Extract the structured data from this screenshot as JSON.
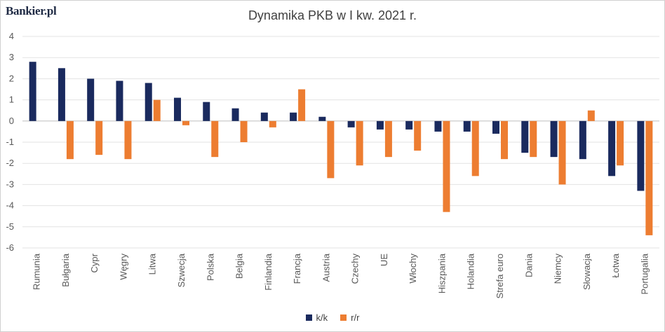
{
  "brand": {
    "logo_text": "Bankier.pl"
  },
  "chart_data": {
    "type": "bar",
    "title": "Dynamika PKB w I kw. 2021 r.",
    "xlabel": "",
    "ylabel": "",
    "ylim": [
      -6,
      4
    ],
    "yticks": [
      4,
      3,
      2,
      1,
      0,
      -1,
      -2,
      -3,
      -4,
      -5,
      -6
    ],
    "grid": true,
    "legend_position": "bottom",
    "categories": [
      "Rumunia",
      "Bułgaria",
      "Cypr",
      "Węgry",
      "Litwa",
      "Szwecja",
      "Polska",
      "Belgia",
      "Finlandia",
      "Francja",
      "Austria",
      "Czechy",
      "UE",
      "Włochy",
      "Hiszpania",
      "Holandia",
      "Strefa euro",
      "Dania",
      "Niemcy",
      "Słowacja",
      "Łotwa",
      "Portugalia"
    ],
    "series": [
      {
        "name": "k/k",
        "color": "#1a2a5e",
        "values": [
          2.8,
          2.5,
          2.0,
          1.9,
          1.8,
          1.1,
          0.9,
          0.6,
          0.4,
          0.4,
          0.2,
          -0.3,
          -0.4,
          -0.4,
          -0.5,
          -0.5,
          -0.6,
          -1.5,
          -1.7,
          -1.8,
          -2.6,
          -3.3
        ]
      },
      {
        "name": "r/r",
        "color": "#ed7d31",
        "values": [
          null,
          -1.8,
          -1.6,
          -1.8,
          1.0,
          -0.2,
          -1.7,
          -1.0,
          -0.3,
          1.5,
          -2.7,
          -2.1,
          -1.7,
          -1.4,
          -4.3,
          -2.6,
          -1.8,
          -1.7,
          -3.0,
          0.5,
          -2.1,
          -5.4
        ]
      }
    ]
  }
}
